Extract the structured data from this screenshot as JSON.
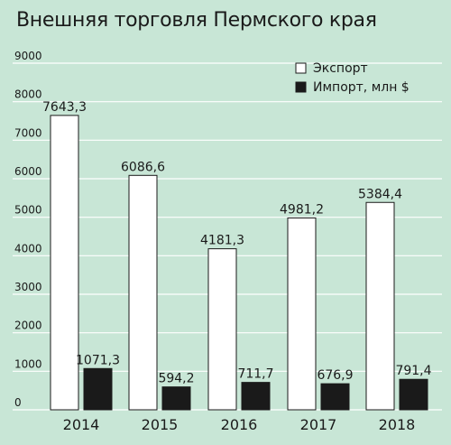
{
  "chart_data": {
    "type": "bar",
    "title": "Внешняя торговля Пермского края",
    "categories": [
      "2014",
      "2015",
      "2016",
      "2017",
      "2018"
    ],
    "series": [
      {
        "name": "Экспорт",
        "values": [
          7643.3,
          6086.6,
          4181.3,
          4981.2,
          5384.4
        ],
        "labels": [
          "7643,3",
          "6086,6",
          "4181,3",
          "4981,2",
          "5384,4"
        ],
        "color": "#ffffff"
      },
      {
        "name": "Импорт, млн $",
        "values": [
          1071.3,
          594.2,
          711.7,
          676.9,
          791.4
        ],
        "labels": [
          "1071,3",
          "594,2",
          "711,7",
          "676,9",
          "791,4"
        ],
        "color": "#1a1a1a"
      }
    ],
    "yticks": [
      0,
      1000,
      2000,
      3000,
      4000,
      5000,
      6000,
      7000,
      8000,
      9000
    ],
    "ylim": [
      0,
      9000
    ],
    "grid": true,
    "legend_position": "top-right",
    "colors": {
      "background": "#c8e6d6",
      "grid": "#ffffff",
      "text": "#1a1a1a"
    }
  }
}
